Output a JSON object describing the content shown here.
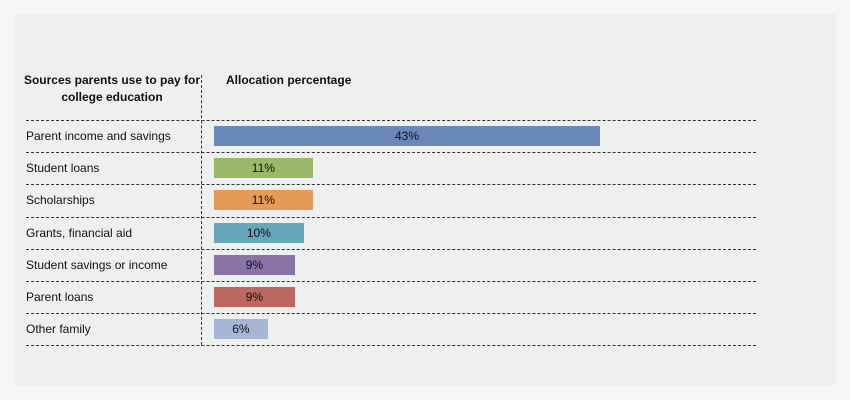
{
  "chart_data": {
    "type": "bar",
    "column_headers": [
      "Sources parents use to pay for college education",
      "Allocation percentage"
    ],
    "categories": [
      "Parent income and savings",
      "Student loans",
      "Scholarships",
      "Grants, financial aid",
      "Student savings or income",
      "Parent loans",
      "Other family"
    ],
    "values": [
      43,
      11,
      11,
      10,
      9,
      9,
      6
    ],
    "value_labels": [
      "43%",
      "11%",
      "11%",
      "10%",
      "9%",
      "9%",
      "6%"
    ],
    "colors": [
      "#6a89bb",
      "#9ab86a",
      "#e69a58",
      "#66a7b9",
      "#8a73a6",
      "#bb6860",
      "#a7b5d7"
    ]
  }
}
